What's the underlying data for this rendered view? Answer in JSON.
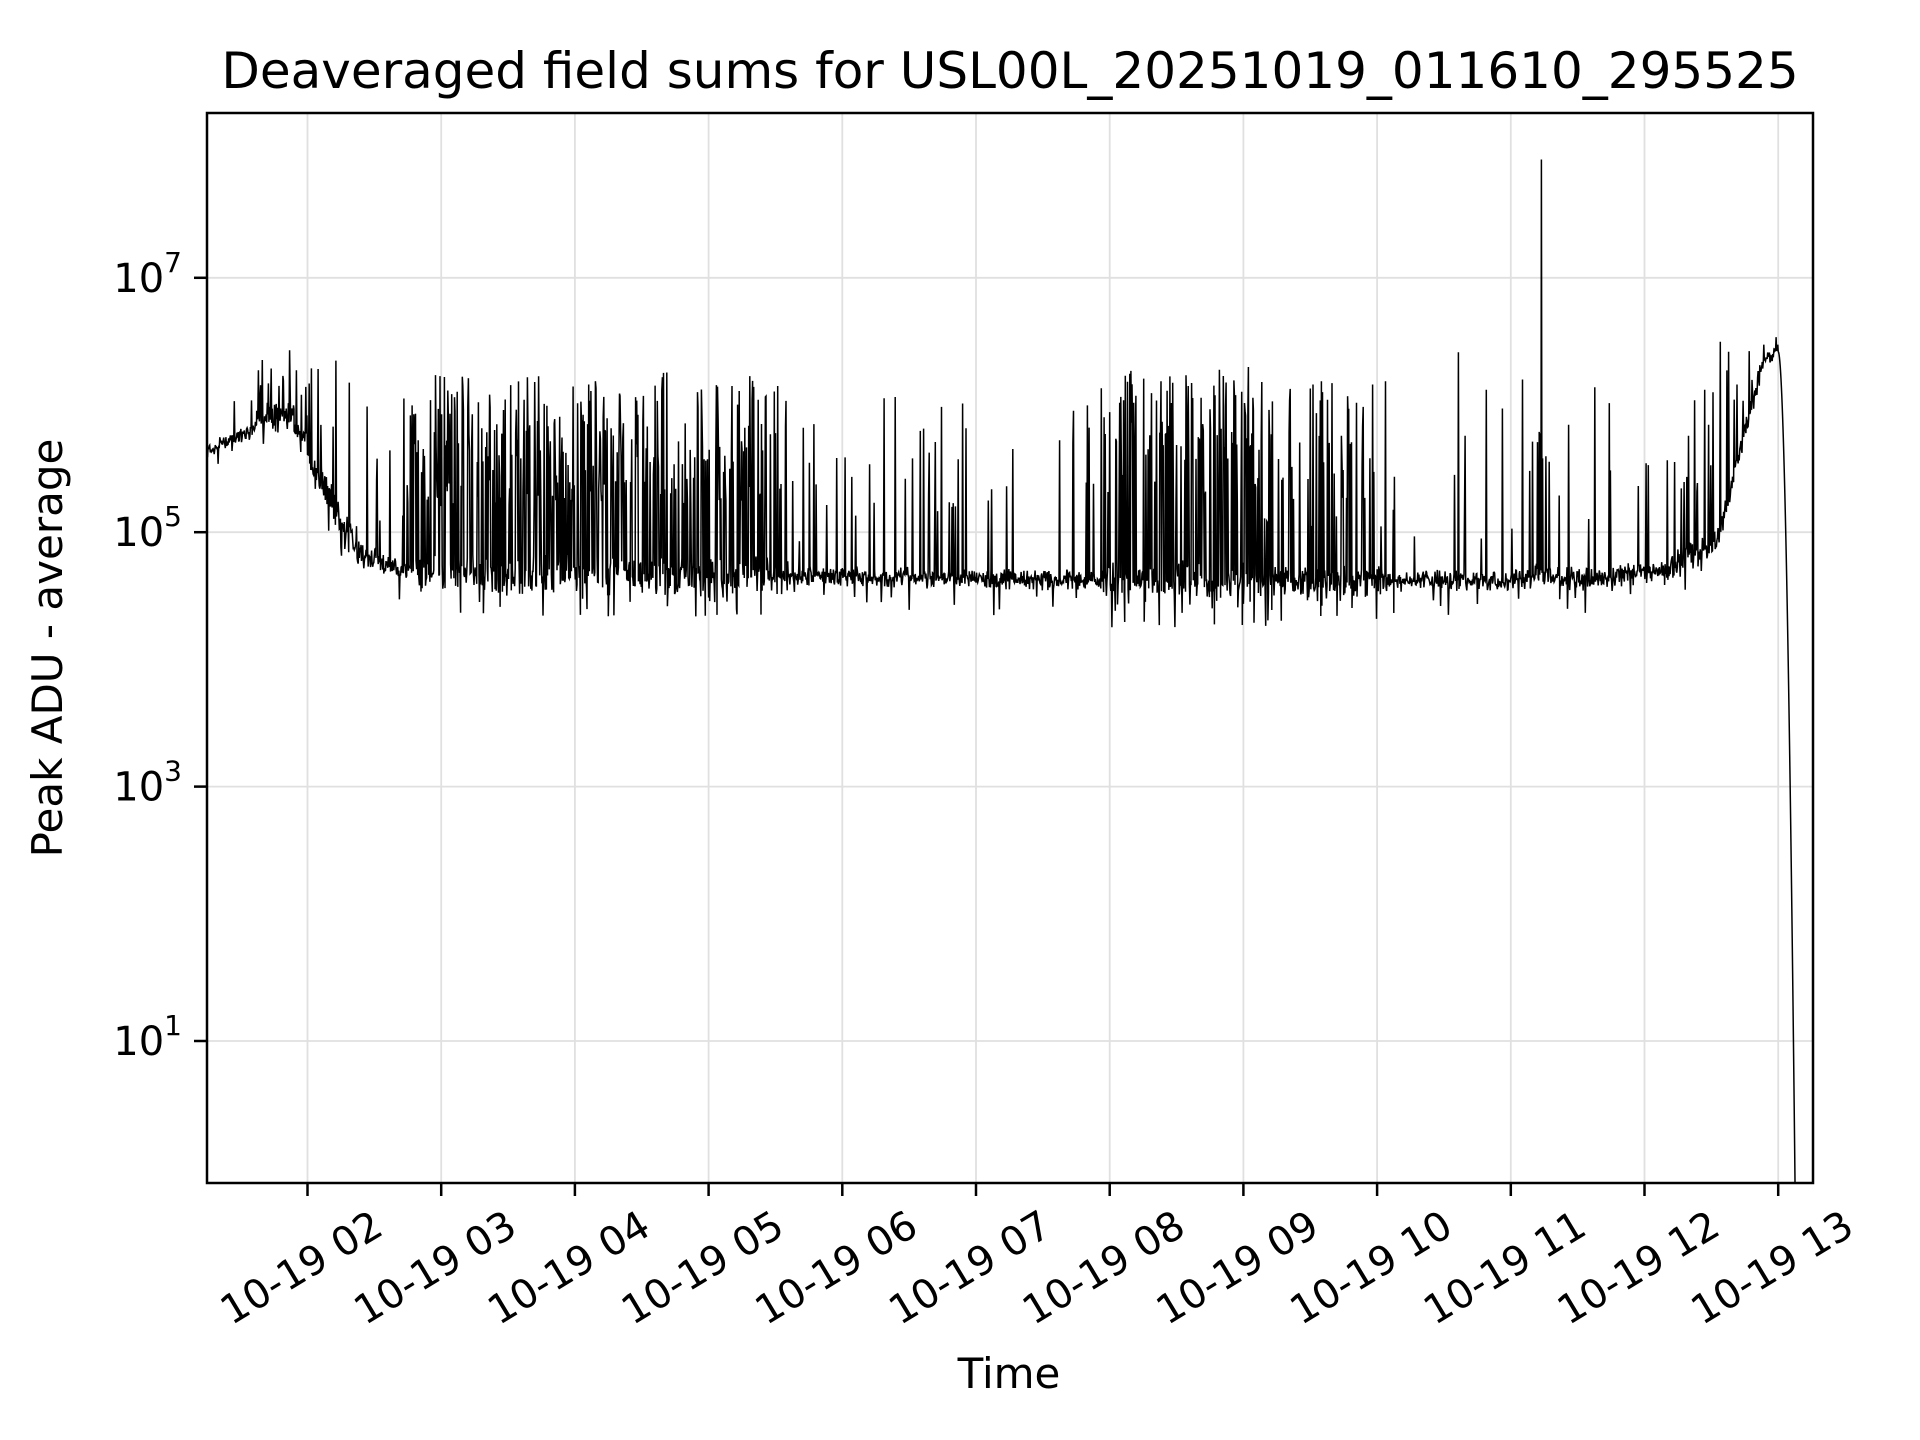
{
  "figure": {
    "background": "#ffffff"
  },
  "chart_data": {
    "type": "line",
    "title": "Deaveraged field sums for USL00L_20251019_011610_295525",
    "xlabel": "Time",
    "ylabel": "Peak ADU - average",
    "y_scale": "log",
    "x_unit": "month-day hour",
    "x_ticks": [
      {
        "label": "10-19 02",
        "hour": 2
      },
      {
        "label": "10-19 03",
        "hour": 3
      },
      {
        "label": "10-19 04",
        "hour": 4
      },
      {
        "label": "10-19 05",
        "hour": 5
      },
      {
        "label": "10-19 06",
        "hour": 6
      },
      {
        "label": "10-19 07",
        "hour": 7
      },
      {
        "label": "10-19 08",
        "hour": 8
      },
      {
        "label": "10-19 09",
        "hour": 9
      },
      {
        "label": "10-19 10",
        "hour": 10
      },
      {
        "label": "10-19 11",
        "hour": 11
      },
      {
        "label": "10-19 12",
        "hour": 12
      },
      {
        "label": "10-19 13",
        "hour": 13
      }
    ],
    "y_ticks": [
      {
        "base": "10",
        "exp": "7",
        "value": 10000000
      },
      {
        "base": "10",
        "exp": "5",
        "value": 100000
      },
      {
        "base": "10",
        "exp": "3",
        "value": 1000
      },
      {
        "base": "10",
        "exp": "1",
        "value": 10
      }
    ],
    "x_range_hours": [
      1.248,
      13.26
    ],
    "y_range": [
      0.76,
      200000000
    ],
    "grid": {
      "show": true,
      "color": "#e0e0e0"
    },
    "legend": null,
    "series": {
      "name": "deaveraged field sum",
      "color": "#000000",
      "width": 1.5
    },
    "sampling_step_hours": 0.0041667,
    "render_seed": 12,
    "segments": [
      {
        "t0": 1.248,
        "t1": 1.62,
        "base0": 5.65,
        "base1": 5.82,
        "jitter": 0.05,
        "spike_p": 0.02,
        "spike_lo": 5.9,
        "spike_hi": 6.1,
        "dip_p": 0.02,
        "dip_max": 0.12
      },
      {
        "t0": 1.62,
        "t1": 1.9,
        "base0": 5.88,
        "base1": 5.92,
        "jitter": 0.09,
        "spike_p": 0.14,
        "spike_lo": 6.0,
        "spike_hi": 6.45,
        "dip_p": 0.04,
        "dip_max": 0.25
      },
      {
        "t0": 1.9,
        "t1": 2.35,
        "base0": 5.85,
        "base1": 4.9,
        "jitter": 0.11,
        "spike_p": 0.1,
        "spike_lo": 5.8,
        "spike_hi": 6.35,
        "dip_p": 0.06,
        "dip_max": 0.25
      },
      {
        "t0": 2.35,
        "t1": 2.77,
        "base0": 4.85,
        "base1": 4.68,
        "jitter": 0.07,
        "spike_p": 0.08,
        "spike_lo": 5.0,
        "spike_hi": 6.1,
        "dip_p": 0.04,
        "dip_max": 0.22
      },
      {
        "t0": 2.77,
        "t1": 4.25,
        "base0": 4.68,
        "base1": 4.66,
        "jitter": 0.12,
        "spike_p": 0.44,
        "spike_lo": 5.2,
        "spike_hi": 6.24,
        "dip_p": 0.04,
        "dip_max": 0.28
      },
      {
        "t0": 4.25,
        "t1": 5.6,
        "base0": 4.66,
        "base1": 4.66,
        "jitter": 0.12,
        "spike_p": 0.36,
        "spike_lo": 5.2,
        "spike_hi": 6.26,
        "dip_p": 0.05,
        "dip_max": 0.28
      },
      {
        "t0": 5.6,
        "t1": 7.95,
        "base0": 4.66,
        "base1": 4.62,
        "jitter": 0.06,
        "spike_p": 0.07,
        "spike_lo": 4.9,
        "spike_hi": 6.15,
        "dip_p": 0.03,
        "dip_max": 0.22
      },
      {
        "t0": 7.95,
        "t1": 9.1,
        "base0": 4.62,
        "base1": 4.62,
        "jitter": 0.12,
        "spike_p": 0.42,
        "spike_lo": 5.2,
        "spike_hi": 6.3,
        "dip_p": 0.05,
        "dip_max": 0.3
      },
      {
        "t0": 9.1,
        "t1": 10.05,
        "base0": 4.6,
        "base1": 4.62,
        "jitter": 0.1,
        "spike_p": 0.22,
        "spike_lo": 5.0,
        "spike_hi": 6.2,
        "dip_p": 0.05,
        "dip_max": 0.28
      },
      {
        "t0": 10.05,
        "t1": 11.15,
        "base0": 4.62,
        "base1": 4.62,
        "jitter": 0.06,
        "spike_p": 0.07,
        "spike_lo": 4.9,
        "spike_hi": 6.45,
        "dip_p": 0.03,
        "dip_max": 0.22
      },
      {
        "t0": 11.15,
        "t1": 11.32,
        "base0": 4.65,
        "base1": 4.65,
        "jitter": 0.08,
        "spike_p": 0.3,
        "spike_lo": 5.5,
        "spike_hi": 6.2,
        "dip_p": 0.02,
        "dip_max": 0.15
      },
      {
        "t0": 11.32,
        "t1": 12.15,
        "base0": 4.62,
        "base1": 4.7,
        "jitter": 0.07,
        "spike_p": 0.08,
        "spike_lo": 5.0,
        "spike_hi": 6.4,
        "dip_p": 0.03,
        "dip_max": 0.2
      },
      {
        "t0": 12.15,
        "t1": 12.55,
        "base0": 4.7,
        "base1": 4.95,
        "jitter": 0.09,
        "spike_p": 0.15,
        "spike_lo": 5.3,
        "spike_hi": 6.2,
        "dip_p": 0.03,
        "dip_max": 0.2
      },
      {
        "t0": 12.55,
        "t1": 12.88,
        "base0": 4.95,
        "base1": 6.3,
        "jitter": 0.08,
        "spike_p": 0.15,
        "spike_lo": 6.0,
        "spike_hi": 6.5,
        "dip_p": 0.02,
        "dip_max": 0.15
      },
      {
        "t0": 12.88,
        "t1": 13.0,
        "base0": 6.32,
        "base1": 6.44,
        "jitter": 0.04,
        "spike_p": 0.08,
        "spike_lo": 6.45,
        "spike_hi": 6.55,
        "dip_p": 0.0,
        "dip_max": 0.0
      }
    ],
    "special": {
      "giant_spike": {
        "t": 11.23,
        "log10_value": 7.93
      },
      "end_plunge": {
        "t0": 13.0,
        "t1": 13.13,
        "log0": 6.42,
        "log1": -0.5,
        "power": 1.9
      }
    }
  }
}
